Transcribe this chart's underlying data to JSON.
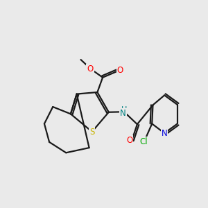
{
  "bg_color": "#eaeaea",
  "bond_color": "#1a1a1a",
  "bond_width": 1.6,
  "atom_colors": {
    "O": "#ff0000",
    "S": "#c8b400",
    "NH": "#008080",
    "N": "#0000dd",
    "Cl": "#00aa00",
    "C": "#1a1a1a"
  },
  "font_size": 8.5
}
